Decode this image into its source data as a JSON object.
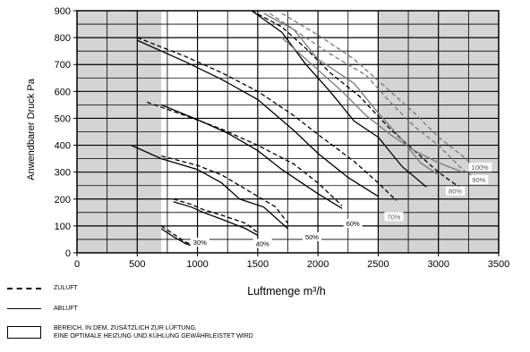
{
  "chart_data": {
    "type": "line",
    "xlabel": "Luftmenge m³/h",
    "ylabel": "Anwendbarer Druck Pa",
    "xlim": [
      0,
      3500
    ],
    "ylim": [
      0,
      900
    ],
    "xticks": [
      "0",
      "500",
      "1000",
      "1500",
      "2000",
      "2500",
      "3000",
      "3500"
    ],
    "yticks": [
      "0",
      "100",
      "200",
      "300",
      "400",
      "500",
      "600",
      "700",
      "800",
      "900"
    ],
    "grid": true,
    "shaded_regions": [
      [
        0,
        700
      ],
      [
        2500,
        3500
      ]
    ],
    "colors": {
      "shade": "#d4d4d4",
      "supply_curve": "#000000",
      "exhaust_curve": "#000000",
      "high_speed_curve": "#777777"
    },
    "series": [
      {
        "name": "30%",
        "label_at": [
          1020,
          40
        ],
        "zuluft": [
          [
            700,
            100
          ],
          [
            800,
            70
          ],
          [
            900,
            40
          ],
          [
            960,
            30
          ]
        ],
        "abluft": [
          [
            700,
            90
          ],
          [
            800,
            60
          ],
          [
            900,
            35
          ],
          [
            960,
            25
          ]
        ]
      },
      {
        "name": "40%",
        "label_at": [
          1540,
          35
        ],
        "zuluft": [
          [
            800,
            200
          ],
          [
            950,
            180
          ],
          [
            1050,
            160
          ],
          [
            1200,
            140
          ],
          [
            1400,
            110
          ],
          [
            1500,
            75
          ]
        ],
        "abluft": [
          [
            800,
            190
          ],
          [
            950,
            170
          ],
          [
            1050,
            150
          ],
          [
            1200,
            125
          ],
          [
            1400,
            90
          ],
          [
            1500,
            65
          ]
        ]
      },
      {
        "name": "50%",
        "label_at": [
          1950,
          60
        ],
        "zuluft": [
          [
            700,
            360
          ],
          [
            1000,
            325
          ],
          [
            1200,
            290
          ],
          [
            1500,
            210
          ],
          [
            1650,
            170
          ],
          [
            1750,
            110
          ]
        ],
        "abluft": [
          [
            450,
            400
          ],
          [
            700,
            350
          ],
          [
            1000,
            310
          ],
          [
            1200,
            260
          ],
          [
            1350,
            200
          ],
          [
            1550,
            170
          ],
          [
            1750,
            90
          ]
        ]
      },
      {
        "name": "60%",
        "label_at": [
          2290,
          110
        ],
        "zuluft": [
          [
            580,
            560
          ],
          [
            900,
            510
          ],
          [
            1200,
            460
          ],
          [
            1500,
            400
          ],
          [
            1800,
            330
          ],
          [
            2000,
            260
          ],
          [
            2200,
            175
          ]
        ],
        "abluft": [
          [
            700,
            550
          ],
          [
            1000,
            495
          ],
          [
            1250,
            445
          ],
          [
            1500,
            380
          ],
          [
            1700,
            310
          ],
          [
            2000,
            220
          ],
          [
            2200,
            165
          ]
        ]
      },
      {
        "name": "70%",
        "label_at": [
          2630,
          135
        ],
        "zuluft": [
          [
            500,
            800
          ],
          [
            900,
            730
          ],
          [
            1200,
            670
          ],
          [
            1500,
            600
          ],
          [
            1800,
            510
          ],
          [
            2000,
            440
          ],
          [
            2300,
            340
          ],
          [
            2500,
            260
          ],
          [
            2650,
            195
          ]
        ],
        "abluft": [
          [
            500,
            790
          ],
          [
            900,
            710
          ],
          [
            1200,
            645
          ],
          [
            1500,
            570
          ],
          [
            1800,
            455
          ],
          [
            2000,
            370
          ],
          [
            2250,
            280
          ],
          [
            2500,
            210
          ]
        ]
      },
      {
        "name": "80%",
        "label_at": [
          3140,
          230
        ],
        "zuluft": [
          [
            1450,
            900
          ],
          [
            1700,
            840
          ],
          [
            1900,
            760
          ],
          [
            2100,
            670
          ],
          [
            2350,
            580
          ],
          [
            2600,
            460
          ],
          [
            2800,
            380
          ],
          [
            3000,
            300
          ],
          [
            3200,
            235
          ]
        ],
        "abluft": [
          [
            1450,
            900
          ],
          [
            1700,
            820
          ],
          [
            1900,
            700
          ],
          [
            2100,
            600
          ],
          [
            2300,
            490
          ],
          [
            2500,
            430
          ],
          [
            2700,
            320
          ],
          [
            2900,
            245
          ]
        ]
      },
      {
        "name": "90%",
        "label_at": [
          3335,
          272
        ],
        "zuluft": [
          [
            1600,
            890
          ],
          [
            1800,
            830
          ],
          [
            2100,
            740
          ],
          [
            2400,
            660
          ],
          [
            2600,
            560
          ],
          [
            2800,
            470
          ],
          [
            3000,
            400
          ],
          [
            3200,
            310
          ],
          [
            3300,
            280
          ]
        ],
        "abluft": [
          [
            1550,
            890
          ],
          [
            1800,
            830
          ],
          [
            2000,
            720
          ],
          [
            2300,
            630
          ],
          [
            2500,
            520
          ],
          [
            2700,
            420
          ],
          [
            2850,
            335
          ],
          [
            3000,
            290
          ]
        ]
      },
      {
        "name": "100%",
        "label_at": [
          3345,
          318
        ],
        "zuluft": [
          [
            1700,
            890
          ],
          [
            2000,
            810
          ],
          [
            2300,
            720
          ],
          [
            2600,
            600
          ],
          [
            2800,
            520
          ],
          [
            3000,
            430
          ],
          [
            3200,
            360
          ],
          [
            3300,
            320
          ]
        ],
        "abluft": [
          [
            1700,
            800
          ],
          [
            1950,
            700
          ],
          [
            2200,
            600
          ],
          [
            2400,
            510
          ],
          [
            2600,
            440
          ],
          [
            2800,
            380
          ],
          [
            3000,
            335
          ],
          [
            3200,
            300
          ]
        ]
      }
    ]
  },
  "legend": {
    "zuluft": "ZULUFT",
    "abluft": "ABLUFT",
    "bereich_line1": "BEREICH, IN DEM, ZUSÄTZLICH ZUR LÜFTUNG,",
    "bereich_line2": "EINE OPTIMALE HEIZUNG UND KÜHLUNG GEWÄHRLEISTET WIRD"
  }
}
